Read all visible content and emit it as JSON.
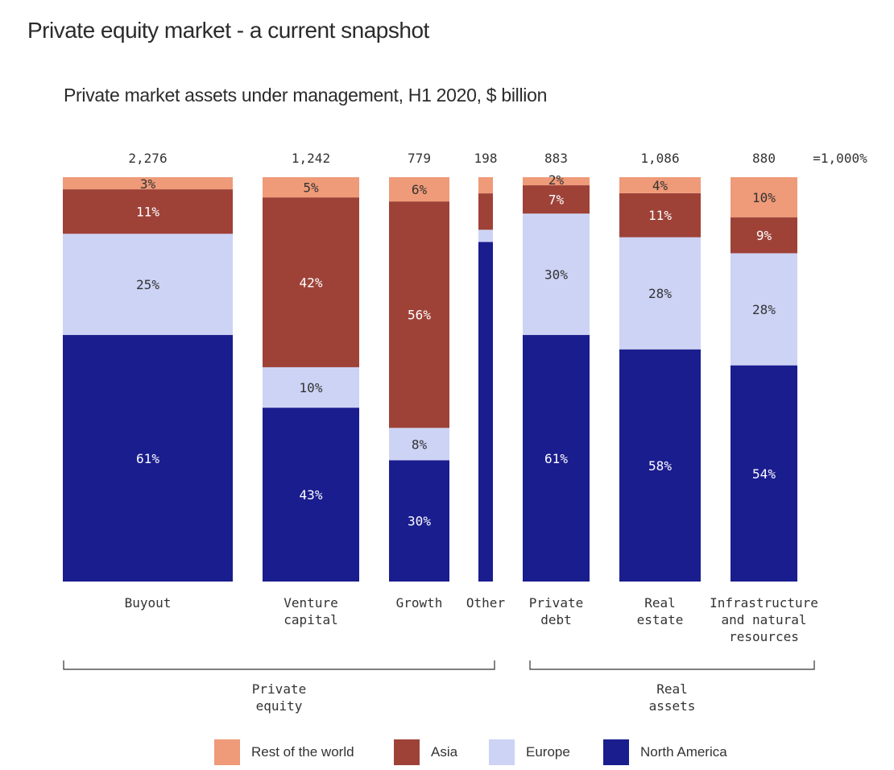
{
  "title": "Private equity market - a current snapshot",
  "subtitle": "Private market assets under management, H1 2020, $ billion",
  "colors": {
    "rest_of_world": "#ef9a78",
    "asia": "#9e4238",
    "europe": "#cdd3f5",
    "north_america": "#1a1d8e"
  },
  "chart_data": {
    "type": "bar",
    "stacked": true,
    "normalized": true,
    "title": "Private market assets under management, H1 2020, $ billion",
    "scale_note": "=1,000%",
    "categories": [
      "Buyout",
      "Venture capital",
      "Growth",
      "Other",
      "Private debt",
      "Real estate",
      "Infrastructure and natural resources"
    ],
    "category_label_lines": [
      [
        "Buyout"
      ],
      [
        "Venture",
        "capital"
      ],
      [
        "Growth"
      ],
      [
        "Other"
      ],
      [
        "Private",
        "debt"
      ],
      [
        "Real",
        "estate"
      ],
      [
        "Infrastructure",
        "and natural",
        "resources"
      ]
    ],
    "totals": [
      2276,
      1242,
      779,
      198,
      883,
      1086,
      880
    ],
    "total_labels": [
      "2,276",
      "1,242",
      "779",
      "198",
      "883",
      "1,086",
      "880"
    ],
    "series": [
      {
        "name": "North America",
        "key": "north_america",
        "values": [
          61,
          43,
          30,
          84,
          61,
          58,
          54
        ],
        "labels": [
          "61%",
          "43%",
          "30%",
          "",
          "61%",
          "58%",
          "54%"
        ]
      },
      {
        "name": "Europe",
        "key": "europe",
        "values": [
          25,
          10,
          8,
          3,
          30,
          28,
          28
        ],
        "labels": [
          "25%",
          "10%",
          "8%",
          "",
          "30%",
          "28%",
          "28%"
        ]
      },
      {
        "name": "Asia",
        "key": "asia",
        "values": [
          11,
          42,
          56,
          9,
          7,
          11,
          9
        ],
        "labels": [
          "11%",
          "42%",
          "56%",
          "",
          "7%",
          "11%",
          "9%"
        ]
      },
      {
        "name": "Rest of the world",
        "key": "rest_of_world",
        "values": [
          3,
          5,
          6,
          4,
          2,
          4,
          10
        ],
        "labels": [
          "3%",
          "5%",
          "6%",
          "",
          "2%",
          "4%",
          "10%"
        ]
      }
    ],
    "groups": [
      {
        "name": "Private equity",
        "label_lines": [
          "Private",
          "equity"
        ],
        "categories": [
          "Buyout",
          "Venture capital",
          "Growth",
          "Other"
        ]
      },
      {
        "name": "Real assets",
        "label_lines": [
          "Real",
          "assets"
        ],
        "categories": [
          "Private debt",
          "Real estate",
          "Infrastructure and natural resources"
        ]
      }
    ],
    "ylim": [
      0,
      100
    ],
    "grid": false,
    "legend_position": "bottom"
  },
  "legend": [
    {
      "label": "Rest of the world",
      "key": "rest_of_world"
    },
    {
      "label": "Asia",
      "key": "asia"
    },
    {
      "label": "Europe",
      "key": "europe"
    },
    {
      "label": "North America",
      "key": "north_america"
    }
  ]
}
